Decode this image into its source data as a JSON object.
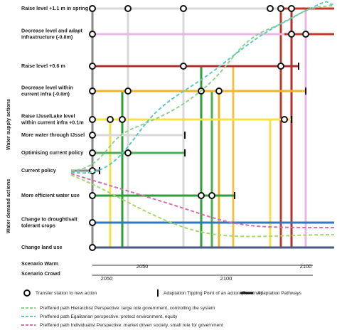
{
  "groups": {
    "supply": "Water supply actions",
    "demand": "Water demand actions"
  },
  "actions": [
    {
      "lines": [
        "Raise level +1.1 m in spring"
      ]
    },
    {
      "lines": [
        "Decrease level and adapt",
        "infrastructure (-0.8m)"
      ]
    },
    {
      "lines": [
        "Raise level +0.6 m"
      ]
    },
    {
      "lines": [
        "Decrease level within",
        "current infra (-0.6m)"
      ]
    },
    {
      "lines": [
        "Raise IJsselLake level",
        "within current infra +0.1m"
      ]
    },
    {
      "lines": [
        "More water through IJssel"
      ]
    },
    {
      "lines": [
        "Optimising current policy"
      ]
    },
    {
      "lines": [
        "Current policy"
      ]
    },
    {
      "lines": [
        "More efficient water use"
      ]
    },
    {
      "lines": [
        "Change to drought/salt",
        "tolerant crops"
      ]
    },
    {
      "lines": [
        "Change land use"
      ]
    }
  ],
  "scenarios": [
    {
      "name": "Scenario Warm",
      "years": [
        "2050",
        "2100"
      ]
    },
    {
      "name": "Scenario Crowd",
      "years": [
        "2050",
        "2100"
      ]
    }
  ],
  "legend": {
    "transfer": "Transfer station to new action",
    "tipping": "Adaptation Tipping Point of an action (Terminal)",
    "pathways": "Adaptation Pathways",
    "hierarchist": "Preffered path Hierarchist Perspective: large role government, controlling the system",
    "egalitarian": "Preffered path Egalitarian perspective: protect environment, equity",
    "individualist": "Preffered path Individualist Perspective: market driven society, small role for government"
  }
}
